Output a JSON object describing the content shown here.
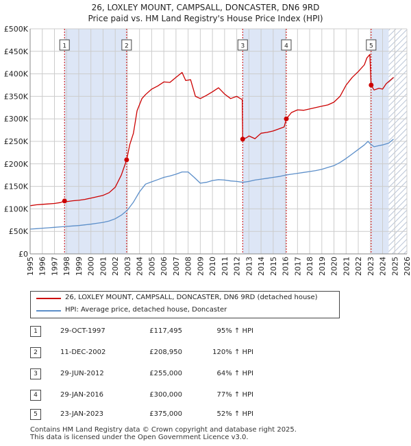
{
  "title_line1": "26, LOXLEY MOUNT, CAMPSALL, DONCASTER, DN6 9RD",
  "title_line2": "Price paid vs. HM Land Registry's House Price Index (HPI)",
  "colors": {
    "property": "#cc0000",
    "hpi": "#5b8ec9",
    "shade": "#dde6f6",
    "hatch": "#b9c4d6",
    "grid": "#cccccc",
    "marker_line": "#cc0000"
  },
  "legend": {
    "property_label": "26, LOXLEY MOUNT, CAMPSALL, DONCASTER, DN6 9RD (detached house)",
    "hpi_label": "HPI: Average price, detached house, Doncaster"
  },
  "sales": [
    {
      "num": "1",
      "date": "29-OCT-1997",
      "price": "£117,495",
      "hpi_change": "95% ↑ HPI"
    },
    {
      "num": "2",
      "date": "11-DEC-2002",
      "price": "£208,950",
      "hpi_change": "120% ↑ HPI"
    },
    {
      "num": "3",
      "date": "29-JUN-2012",
      "price": "£255,000",
      "hpi_change": "64% ↑ HPI"
    },
    {
      "num": "4",
      "date": "29-JAN-2016",
      "price": "£300,000",
      "hpi_change": "77% ↑ HPI"
    },
    {
      "num": "5",
      "date": "23-JAN-2023",
      "price": "£375,000",
      "hpi_change": "52% ↑ HPI"
    }
  ],
  "footer_line1": "Contains HM Land Registry data © Crown copyright and database right 2025.",
  "footer_line2": "This data is licensed under the Open Government Licence v3.0.",
  "chart_data": {
    "type": "line",
    "title": "26, LOXLEY MOUNT, CAMPSALL, DONCASTER, DN6 9RD",
    "subtitle": "Price paid vs. HM Land Registry's House Price Index (HPI)",
    "xlabel": "",
    "ylabel": "",
    "xlim": [
      1995,
      2026
    ],
    "ylim": [
      0,
      500000
    ],
    "x_ticks": [
      1995,
      1996,
      1997,
      1998,
      1999,
      2000,
      2001,
      2002,
      2003,
      2004,
      2005,
      2006,
      2007,
      2008,
      2009,
      2010,
      2011,
      2012,
      2013,
      2014,
      2015,
      2016,
      2017,
      2018,
      2019,
      2020,
      2021,
      2022,
      2023,
      2024,
      2025,
      2026
    ],
    "y_ticks": [
      0,
      50000,
      100000,
      150000,
      200000,
      250000,
      300000,
      350000,
      400000,
      450000,
      500000
    ],
    "y_tick_labels": [
      "£0",
      "£50K",
      "£100K",
      "£150K",
      "£200K",
      "£250K",
      "£300K",
      "£350K",
      "£400K",
      "£450K",
      "£500K"
    ],
    "grid": true,
    "legend_position": "bottom",
    "shaded_periods": [
      [
        1997.83,
        2002.94
      ],
      [
        2012.49,
        2016.08
      ],
      [
        2023.06,
        2024.5
      ]
    ],
    "hatched_region": [
      2024.5,
      2026
    ],
    "sale_markers": [
      {
        "label": "1",
        "x": 1997.83,
        "y": 117495
      },
      {
        "label": "2",
        "x": 2002.94,
        "y": 208950
      },
      {
        "label": "3",
        "x": 2012.49,
        "y": 255000
      },
      {
        "label": "4",
        "x": 2016.08,
        "y": 300000
      },
      {
        "label": "5",
        "x": 2023.06,
        "y": 375000
      }
    ],
    "series": [
      {
        "name": "26, LOXLEY MOUNT, CAMPSALL, DONCASTER, DN6 9RD (detached house)",
        "color": "#cc0000",
        "x": [
          1995.0,
          1995.5,
          1996.0,
          1996.5,
          1997.0,
          1997.5,
          1997.83,
          1998.0,
          1998.5,
          1999.0,
          1999.5,
          2000.0,
          2000.5,
          2001.0,
          2001.5,
          2002.0,
          2002.5,
          2002.94,
          2003.2,
          2003.5,
          2003.8,
          2004.2,
          2004.5,
          2005.0,
          2005.5,
          2006.0,
          2006.5,
          2007.0,
          2007.5,
          2007.8,
          2008.2,
          2008.6,
          2009.0,
          2009.5,
          2010.0,
          2010.5,
          2011.0,
          2011.5,
          2012.0,
          2012.3,
          2012.45,
          2012.49,
          2012.8,
          2013.0,
          2013.5,
          2014.0,
          2014.5,
          2015.0,
          2015.5,
          2015.9,
          2016.08,
          2016.5,
          2017.0,
          2017.5,
          2018.0,
          2018.5,
          2019.0,
          2019.5,
          2020.0,
          2020.5,
          2021.0,
          2021.5,
          2022.0,
          2022.5,
          2022.7,
          2022.95,
          2023.06,
          2023.3,
          2023.7,
          2024.0,
          2024.3,
          2024.6,
          2024.9
        ],
        "y": [
          107000,
          109000,
          110000,
          111000,
          112000,
          114000,
          117495,
          116000,
          118000,
          119000,
          121000,
          124000,
          127000,
          130000,
          136000,
          148000,
          175000,
          208950,
          243000,
          268000,
          318000,
          345000,
          354000,
          366000,
          373000,
          382000,
          381000,
          392000,
          403000,
          385000,
          387000,
          350000,
          345000,
          352000,
          360000,
          369000,
          355000,
          345000,
          350000,
          345000,
          343000,
          255000,
          258000,
          262000,
          256000,
          268000,
          270000,
          273000,
          278000,
          282000,
          300000,
          314000,
          320000,
          319000,
          322000,
          325000,
          328000,
          331000,
          337000,
          350000,
          375000,
          392000,
          405000,
          420000,
          435000,
          443000,
          375000,
          364000,
          368000,
          366000,
          378000,
          385000,
          392000
        ]
      },
      {
        "name": "HPI: Average price, detached house, Doncaster",
        "color": "#5b8ec9",
        "x": [
          1995.0,
          1995.5,
          1996.0,
          1996.5,
          1997.0,
          1997.5,
          1998.0,
          1998.5,
          1999.0,
          1999.5,
          2000.0,
          2000.5,
          2001.0,
          2001.5,
          2002.0,
          2002.5,
          2003.0,
          2003.5,
          2004.0,
          2004.5,
          2005.0,
          2005.5,
          2006.0,
          2006.5,
          2007.0,
          2007.5,
          2008.0,
          2008.5,
          2009.0,
          2009.5,
          2010.0,
          2010.5,
          2011.0,
          2011.5,
          2012.0,
          2012.5,
          2013.0,
          2013.5,
          2014.0,
          2014.5,
          2015.0,
          2015.5,
          2016.0,
          2016.5,
          2017.0,
          2017.5,
          2018.0,
          2018.5,
          2019.0,
          2019.5,
          2020.0,
          2020.5,
          2021.0,
          2021.5,
          2022.0,
          2022.5,
          2022.8,
          2023.0,
          2023.3,
          2023.6,
          2024.0,
          2024.5,
          2024.9
        ],
        "y": [
          55000,
          56000,
          57000,
          58000,
          59000,
          60000,
          61000,
          62000,
          63000,
          64500,
          66000,
          68000,
          70000,
          73000,
          78000,
          86000,
          97000,
          115000,
          138000,
          155000,
          160000,
          165000,
          170000,
          173000,
          177000,
          182000,
          182000,
          170000,
          157000,
          159000,
          163000,
          165000,
          164000,
          162000,
          161000,
          159000,
          161000,
          164000,
          166000,
          168000,
          170000,
          172000,
          175000,
          177000,
          179000,
          181000,
          183000,
          185000,
          188000,
          192000,
          196000,
          203000,
          212000,
          222000,
          232000,
          242000,
          250000,
          244000,
          238000,
          240000,
          242000,
          246000,
          255000
        ]
      }
    ]
  }
}
